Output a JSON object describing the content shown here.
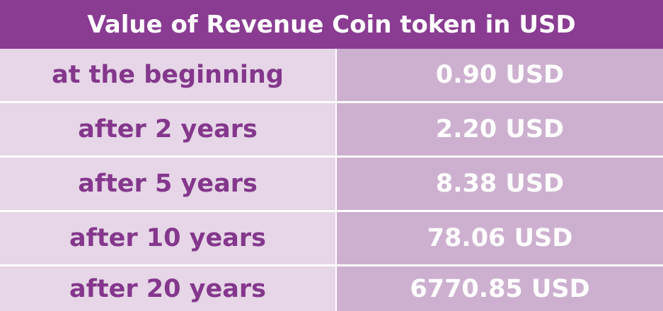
{
  "chart_data": {
    "type": "table",
    "title": "Value of Revenue Coin token in USD",
    "columns": [
      "",
      ""
    ],
    "rows": [
      {
        "label": "at the beginning",
        "value": "0.90 USD",
        "usd": 0.9
      },
      {
        "label": "after 2 years",
        "value": "2.20 USD",
        "usd": 2.2
      },
      {
        "label": "after 5 years",
        "value": "8.38 USD",
        "usd": 8.38
      },
      {
        "label": "after 10 years",
        "value": "78.06 USD",
        "usd": 78.06
      },
      {
        "label": "after 20 years",
        "value": "6770.85 USD",
        "usd": 6770.85
      }
    ]
  },
  "colors": {
    "header_bg": "#8a3c92",
    "label_bg": "#e6d6e7",
    "value_bg": "#cdb0d0",
    "label_text": "#84378c",
    "value_text": "#ffffff"
  }
}
